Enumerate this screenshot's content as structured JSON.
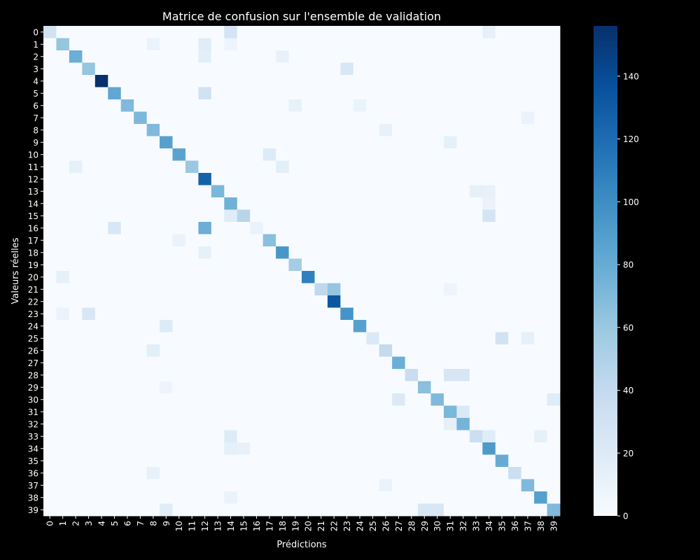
{
  "chart_data": {
    "type": "heatmap",
    "title": "Matrice de confusion sur l'ensemble de validation",
    "xlabel": "Prédictions",
    "ylabel": "Valeurs réelles",
    "classes": [
      "0",
      "1",
      "2",
      "3",
      "4",
      "5",
      "6",
      "7",
      "8",
      "9",
      "10",
      "11",
      "12",
      "13",
      "14",
      "15",
      "16",
      "17",
      "18",
      "19",
      "20",
      "21",
      "22",
      "23",
      "24",
      "25",
      "26",
      "27",
      "28",
      "29",
      "30",
      "31",
      "32",
      "33",
      "34",
      "35",
      "36",
      "37",
      "38",
      "39"
    ],
    "colorbar": {
      "min": 0,
      "max": 156,
      "ticks": [
        0,
        20,
        40,
        60,
        80,
        100,
        120,
        140
      ],
      "colormap": [
        "#f7fbff",
        "#deebf7",
        "#c6dbef",
        "#9ecae1",
        "#6baed6",
        "#4292c6",
        "#2171b5",
        "#08519c",
        "#08306b"
      ]
    },
    "diagonal": [
      30,
      62,
      78,
      62,
      156,
      83,
      70,
      71,
      70,
      88,
      86,
      60,
      126,
      72,
      76,
      46,
      10,
      66,
      94,
      55,
      108,
      42,
      133,
      96,
      88,
      22,
      40,
      78,
      36,
      66,
      70,
      72,
      74,
      34,
      92,
      80,
      34,
      70,
      88,
      70
    ],
    "off_diagonal": [
      {
        "true": 0,
        "pred": 14,
        "value": 28
      },
      {
        "true": 0,
        "pred": 34,
        "value": 14
      },
      {
        "true": 1,
        "pred": 12,
        "value": 18
      },
      {
        "true": 1,
        "pred": 8,
        "value": 10
      },
      {
        "true": 1,
        "pred": 14,
        "value": 8
      },
      {
        "true": 2,
        "pred": 12,
        "value": 16
      },
      {
        "true": 2,
        "pred": 18,
        "value": 12
      },
      {
        "true": 3,
        "pred": 23,
        "value": 24
      },
      {
        "true": 5,
        "pred": 12,
        "value": 30
      },
      {
        "true": 6,
        "pred": 19,
        "value": 12
      },
      {
        "true": 6,
        "pred": 24,
        "value": 10
      },
      {
        "true": 7,
        "pred": 37,
        "value": 10
      },
      {
        "true": 8,
        "pred": 26,
        "value": 12
      },
      {
        "true": 9,
        "pred": 31,
        "value": 14
      },
      {
        "true": 10,
        "pred": 17,
        "value": 20
      },
      {
        "true": 11,
        "pred": 2,
        "value": 14
      },
      {
        "true": 11,
        "pred": 18,
        "value": 16
      },
      {
        "true": 13,
        "pred": 33,
        "value": 14
      },
      {
        "true": 13,
        "pred": 34,
        "value": 12
      },
      {
        "true": 14,
        "pred": 34,
        "value": 10
      },
      {
        "true": 15,
        "pred": 14,
        "value": 18
      },
      {
        "true": 15,
        "pred": 34,
        "value": 28
      },
      {
        "true": 16,
        "pred": 5,
        "value": 24
      },
      {
        "true": 16,
        "pred": 12,
        "value": 78
      },
      {
        "true": 17,
        "pred": 10,
        "value": 10
      },
      {
        "true": 18,
        "pred": 12,
        "value": 14
      },
      {
        "true": 20,
        "pred": 1,
        "value": 14
      },
      {
        "true": 21,
        "pred": 22,
        "value": 62
      },
      {
        "true": 21,
        "pred": 31,
        "value": 8
      },
      {
        "true": 23,
        "pred": 3,
        "value": 24
      },
      {
        "true": 23,
        "pred": 1,
        "value": 10
      },
      {
        "true": 24,
        "pred": 9,
        "value": 20
      },
      {
        "true": 25,
        "pred": 35,
        "value": 30
      },
      {
        "true": 25,
        "pred": 37,
        "value": 14
      },
      {
        "true": 26,
        "pred": 8,
        "value": 16
      },
      {
        "true": 28,
        "pred": 31,
        "value": 26
      },
      {
        "true": 28,
        "pred": 32,
        "value": 26
      },
      {
        "true": 29,
        "pred": 9,
        "value": 8
      },
      {
        "true": 30,
        "pred": 27,
        "value": 22
      },
      {
        "true": 30,
        "pred": 39,
        "value": 18
      },
      {
        "true": 31,
        "pred": 32,
        "value": 22
      },
      {
        "true": 32,
        "pred": 31,
        "value": 14
      },
      {
        "true": 33,
        "pred": 14,
        "value": 20
      },
      {
        "true": 33,
        "pred": 34,
        "value": 18
      },
      {
        "true": 33,
        "pred": 38,
        "value": 14
      },
      {
        "true": 34,
        "pred": 14,
        "value": 14
      },
      {
        "true": 34,
        "pred": 15,
        "value": 12
      },
      {
        "true": 36,
        "pred": 8,
        "value": 12
      },
      {
        "true": 37,
        "pred": 26,
        "value": 10
      },
      {
        "true": 38,
        "pred": 14,
        "value": 10
      },
      {
        "true": 39,
        "pred": 29,
        "value": 24
      },
      {
        "true": 39,
        "pred": 30,
        "value": 24
      },
      {
        "true": 39,
        "pred": 9,
        "value": 18
      }
    ]
  }
}
